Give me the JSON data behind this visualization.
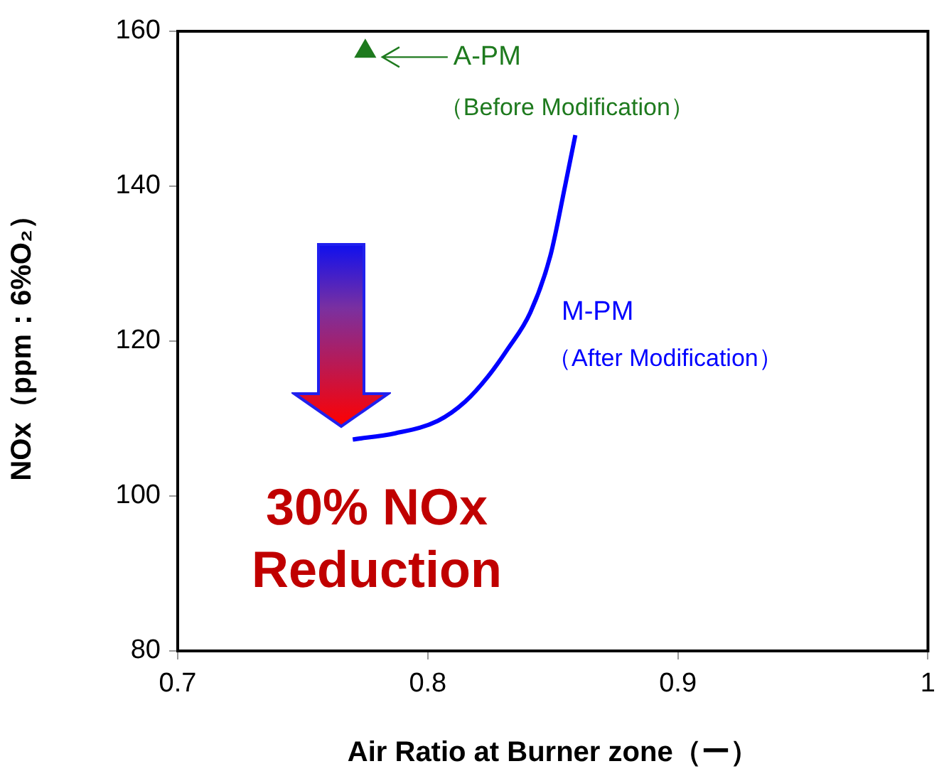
{
  "chart_data": {
    "type": "line",
    "xlabel": "Air Ratio at Burner zone（ー）",
    "ylabel": "NOx（ppm：6%O₂）",
    "xlim": [
      0.7,
      1
    ],
    "xticks": [
      0.7,
      0.8,
      0.9,
      1
    ],
    "ylim": [
      80,
      160
    ],
    "yticks": [
      80,
      100,
      120,
      140,
      160
    ],
    "grid": false,
    "series": [
      {
        "name": "A-PM",
        "type": "scatter",
        "marker": "triangle",
        "color": "#1e7a1e",
        "x": [
          0.775
        ],
        "values": [
          157.4
        ]
      },
      {
        "name": "M-PM",
        "color": "#0000ff",
        "marker": "none",
        "x": [
          0.77,
          0.787,
          0.804,
          0.815,
          0.824,
          0.832,
          0.841,
          0.849,
          0.855,
          0.859
        ],
        "values": [
          107.3,
          108.1,
          109.7,
          112.2,
          115.4,
          119.0,
          123.7,
          131.0,
          140.2,
          146.6
        ]
      }
    ],
    "annotations": [
      "（Before Modification）",
      "（After Modification）",
      "30% NOx Reduction"
    ]
  }
}
